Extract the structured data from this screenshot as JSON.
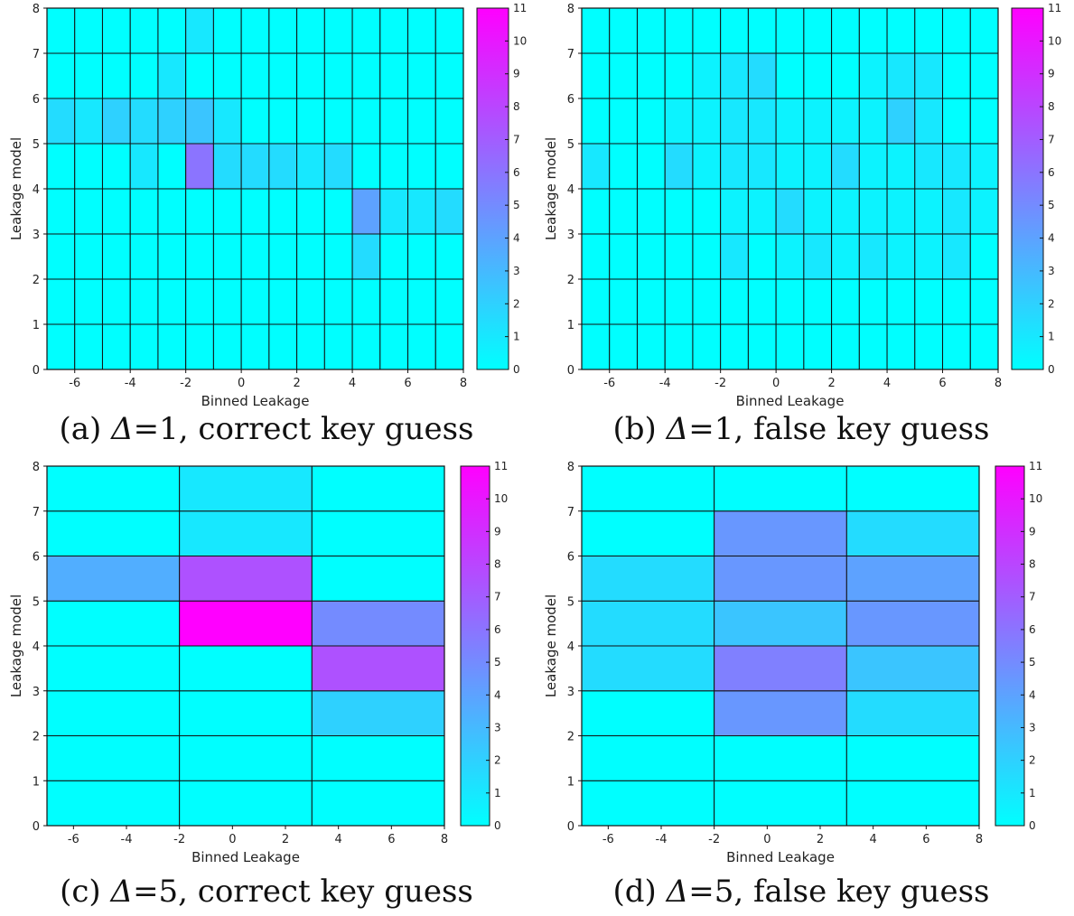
{
  "colorscale": {
    "min": 0,
    "max": 11,
    "low": "#00ffff",
    "high": "#ff00ff"
  },
  "chart_data": [
    {
      "id": "a",
      "type": "heatmap",
      "caption": {
        "prefix": "(a) ",
        "delta": "Δ",
        "rest": "=1, correct key guess"
      },
      "xlabel": "Binned Leakage",
      "ylabel": "Leakage model",
      "xlim": [
        -7,
        8
      ],
      "ylim": [
        0,
        8
      ],
      "xticks": [
        "-6",
        "-4",
        "-2",
        "0",
        "2",
        "4",
        "6",
        "8"
      ],
      "yticks": [
        "0",
        "1",
        "2",
        "3",
        "4",
        "5",
        "6",
        "7",
        "8"
      ],
      "colorbar_ticks": [
        "0",
        "1",
        "2",
        "3",
        "4",
        "5",
        "6",
        "7",
        "8",
        "9",
        "10",
        "11"
      ],
      "x_edges": [
        -7,
        -6,
        -5,
        -4,
        -3,
        -2,
        -1,
        0,
        1,
        2,
        3,
        4,
        5,
        6,
        7,
        8
      ],
      "y_edges": [
        0,
        1,
        2,
        3,
        4,
        5,
        6,
        7,
        8
      ],
      "z": [
        [
          0,
          0,
          0,
          0,
          0,
          0,
          0,
          0,
          0,
          0,
          0,
          0,
          0,
          0,
          0
        ],
        [
          0,
          0,
          0,
          0,
          0,
          0,
          0,
          0,
          0,
          0,
          0,
          0,
          0,
          0,
          0
        ],
        [
          0,
          0,
          0,
          0,
          0,
          0,
          0,
          0,
          0,
          0,
          0,
          1.5,
          0,
          0,
          0
        ],
        [
          0,
          0,
          0,
          0,
          0,
          0,
          0,
          0,
          0,
          0,
          0,
          4,
          1,
          1,
          1.5
        ],
        [
          0,
          0,
          0,
          1,
          0,
          6,
          1.5,
          1.5,
          1.5,
          1,
          1.5,
          0,
          0,
          0,
          0
        ],
        [
          1.5,
          1,
          2,
          1.5,
          2,
          2.5,
          1,
          0,
          0,
          0,
          0,
          0,
          0,
          0,
          0
        ],
        [
          0,
          0,
          0,
          0,
          1,
          0,
          0,
          0,
          0,
          0,
          0,
          0,
          0,
          0,
          0
        ],
        [
          0,
          0,
          0,
          0,
          0,
          1,
          0,
          0,
          0,
          0,
          0,
          0,
          0,
          0,
          0
        ]
      ]
    },
    {
      "id": "b",
      "type": "heatmap",
      "caption": {
        "prefix": "(b) ",
        "delta": "Δ",
        "rest": "=1, false key guess"
      },
      "xlabel": "Binned Leakage",
      "ylabel": "Leakage model",
      "xlim": [
        -7,
        8
      ],
      "ylim": [
        0,
        8
      ],
      "xticks": [
        "-6",
        "-4",
        "-2",
        "0",
        "2",
        "4",
        "6",
        "8"
      ],
      "yticks": [
        "0",
        "1",
        "2",
        "3",
        "4",
        "5",
        "6",
        "7",
        "8"
      ],
      "colorbar_ticks": [
        "0",
        "1",
        "2",
        "3",
        "4",
        "5",
        "6",
        "7",
        "8",
        "9",
        "10",
        "11"
      ],
      "x_edges": [
        -7,
        -6,
        -5,
        -4,
        -3,
        -2,
        -1,
        0,
        1,
        2,
        3,
        4,
        5,
        6,
        7,
        8
      ],
      "y_edges": [
        0,
        1,
        2,
        3,
        4,
        5,
        6,
        7,
        8
      ],
      "z": [
        [
          0,
          0,
          0,
          0,
          0,
          0,
          0,
          0,
          0,
          0,
          0,
          0,
          0,
          0,
          0
        ],
        [
          0,
          0,
          0,
          0,
          0,
          0,
          0,
          0,
          0,
          0,
          0,
          0,
          0,
          0,
          0
        ],
        [
          0,
          0,
          0,
          0,
          0,
          1,
          0,
          0.5,
          1,
          0.5,
          1,
          0.5,
          0.5,
          1,
          0
        ],
        [
          0,
          0,
          0,
          0,
          0,
          0.5,
          0.5,
          1.5,
          0.5,
          0.5,
          0.5,
          0.5,
          0.5,
          1,
          0.5
        ],
        [
          1,
          0,
          0,
          1.5,
          0.5,
          1,
          1,
          0.5,
          0.5,
          1.5,
          0.5,
          0.5,
          1,
          1,
          0.5
        ],
        [
          0,
          0,
          0,
          0.5,
          0.5,
          1,
          1,
          0.5,
          0.5,
          0.5,
          0.5,
          2,
          1,
          0,
          0
        ],
        [
          0,
          0,
          0,
          0,
          0.5,
          1,
          1.5,
          0,
          0,
          0,
          0.5,
          1,
          1,
          0,
          0
        ],
        [
          0,
          0,
          0,
          0,
          0,
          0,
          0,
          0,
          0,
          0,
          0,
          0,
          0,
          0,
          0
        ]
      ]
    },
    {
      "id": "c",
      "type": "heatmap",
      "caption": {
        "prefix": "(c) ",
        "delta": "Δ",
        "rest": "=5, correct key guess"
      },
      "xlabel": "Binned Leakage",
      "ylabel": "Leakage model",
      "xlim": [
        -7,
        8
      ],
      "ylim": [
        0,
        8
      ],
      "xticks": [
        "-6",
        "-4",
        "-2",
        "0",
        "2",
        "4",
        "6",
        "8"
      ],
      "yticks": [
        "0",
        "1",
        "2",
        "3",
        "4",
        "5",
        "6",
        "7",
        "8"
      ],
      "colorbar_ticks": [
        "0",
        "1",
        "2",
        "3",
        "4",
        "5",
        "6",
        "7",
        "8",
        "9",
        "10",
        "11"
      ],
      "x_edges": [
        -7,
        -2,
        3,
        8
      ],
      "y_edges": [
        0,
        1,
        2,
        3,
        4,
        5,
        6,
        7,
        8
      ],
      "z": [
        [
          0,
          0,
          0
        ],
        [
          0,
          0,
          0
        ],
        [
          0,
          0,
          2
        ],
        [
          0,
          0,
          7.5
        ],
        [
          0,
          11,
          5
        ],
        [
          3.5,
          7.5,
          0
        ],
        [
          0,
          1,
          0
        ],
        [
          0,
          1,
          0
        ]
      ]
    },
    {
      "id": "d",
      "type": "heatmap",
      "caption": {
        "prefix": "(d) ",
        "delta": "Δ",
        "rest": "=5, false key guess"
      },
      "xlabel": "Binned Leakage",
      "ylabel": "Leakage model",
      "xlim": [
        -7,
        8
      ],
      "ylim": [
        0,
        8
      ],
      "xticks": [
        "-6",
        "-4",
        "-2",
        "0",
        "2",
        "4",
        "6",
        "8"
      ],
      "yticks": [
        "0",
        "1",
        "2",
        "3",
        "4",
        "5",
        "6",
        "7",
        "8"
      ],
      "colorbar_ticks": [
        "0",
        "1",
        "2",
        "3",
        "4",
        "5",
        "6",
        "7",
        "8",
        "9",
        "10",
        "11"
      ],
      "x_edges": [
        -7,
        -2,
        3,
        8
      ],
      "y_edges": [
        0,
        1,
        2,
        3,
        4,
        5,
        6,
        7,
        8
      ],
      "z": [
        [
          0,
          0,
          0
        ],
        [
          0,
          0,
          0
        ],
        [
          0,
          4.5,
          1.5
        ],
        [
          1.5,
          5.5,
          2.5
        ],
        [
          1.5,
          2.5,
          4.5
        ],
        [
          1.5,
          4.5,
          4
        ],
        [
          0,
          4.5,
          1.5
        ],
        [
          0,
          0,
          0
        ]
      ]
    }
  ]
}
